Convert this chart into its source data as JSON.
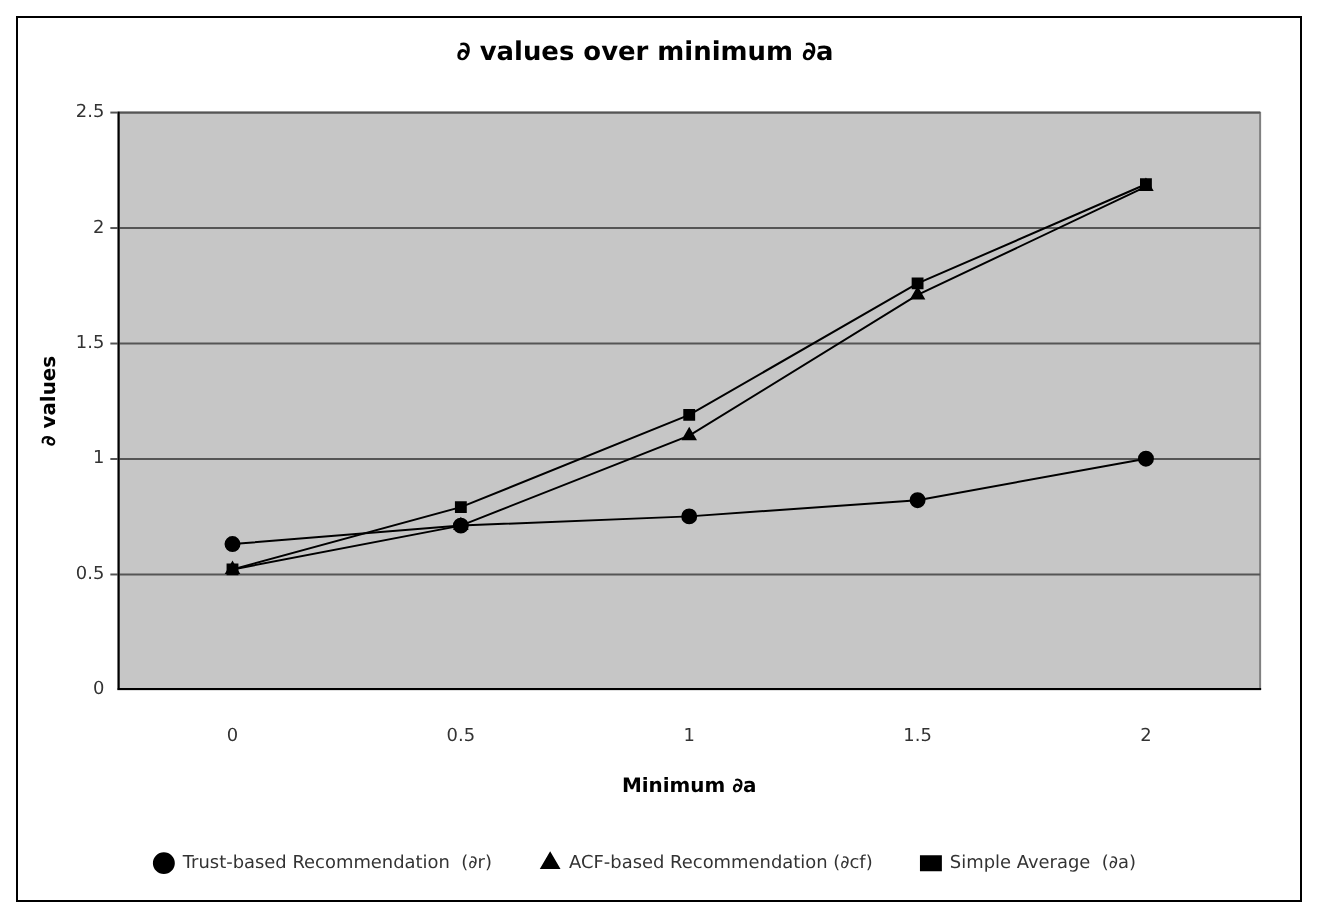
{
  "chart_data": {
    "type": "line",
    "title": "∂ values over minimum ∂a",
    "xlabel": "Minimum ∂a",
    "ylabel": "∂ values",
    "categories": [
      "0",
      "0.5",
      "1",
      "1.5",
      "2"
    ],
    "series": [
      {
        "name": "Trust-based Recommendation  (∂r)",
        "color": "#000000",
        "marker": "circle",
        "values": [
          0.63,
          0.71,
          0.75,
          0.82,
          1.0
        ]
      },
      {
        "name": "ACF-based Recommendation (∂cf)",
        "color": "#000000",
        "marker": "triangle",
        "values": [
          0.52,
          0.71,
          1.1,
          1.71,
          2.18
        ]
      },
      {
        "name": "Simple Average  (∂a)",
        "color": "#000000",
        "marker": "square",
        "values": [
          0.52,
          0.79,
          1.19,
          1.76,
          2.19
        ]
      }
    ],
    "ylim": [
      0,
      2.5
    ],
    "yticks": [
      0,
      0.5,
      1,
      1.5,
      2,
      2.5
    ],
    "grid": "y",
    "legend": "bottom"
  }
}
